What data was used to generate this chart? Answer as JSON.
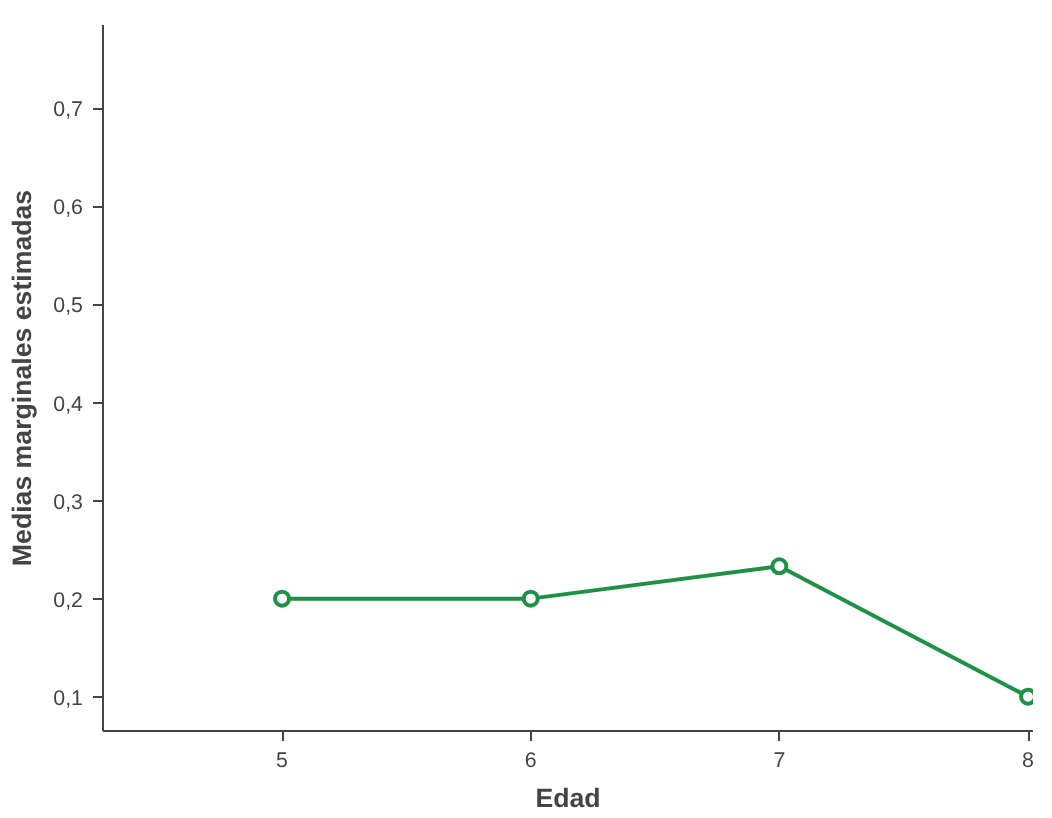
{
  "chart_data": {
    "type": "line",
    "xlabel": "Edad",
    "ylabel": "Medias marginales estimadas",
    "x": [
      5,
      6,
      7,
      8
    ],
    "series": [
      {
        "color": "#1e9146",
        "values": [
          0.2,
          0.2,
          0.233,
          0.1
        ]
      }
    ],
    "xlim": [
      4.28,
      8.02
    ],
    "xticks": [
      5,
      6,
      7,
      8
    ],
    "ylim": [
      0.065,
      0.785
    ],
    "yticks": [
      {
        "value": 0.1,
        "label": "0,1"
      },
      {
        "value": 0.2,
        "label": "0,2"
      },
      {
        "value": 0.3,
        "label": "0,3"
      },
      {
        "value": 0.4,
        "label": "0,4"
      },
      {
        "value": 0.5,
        "label": "0,5"
      },
      {
        "value": 0.6,
        "label": "0,6"
      },
      {
        "value": 0.7,
        "label": "0,7"
      }
    ],
    "grid": false,
    "marker": "circle",
    "line_style": "solid"
  }
}
